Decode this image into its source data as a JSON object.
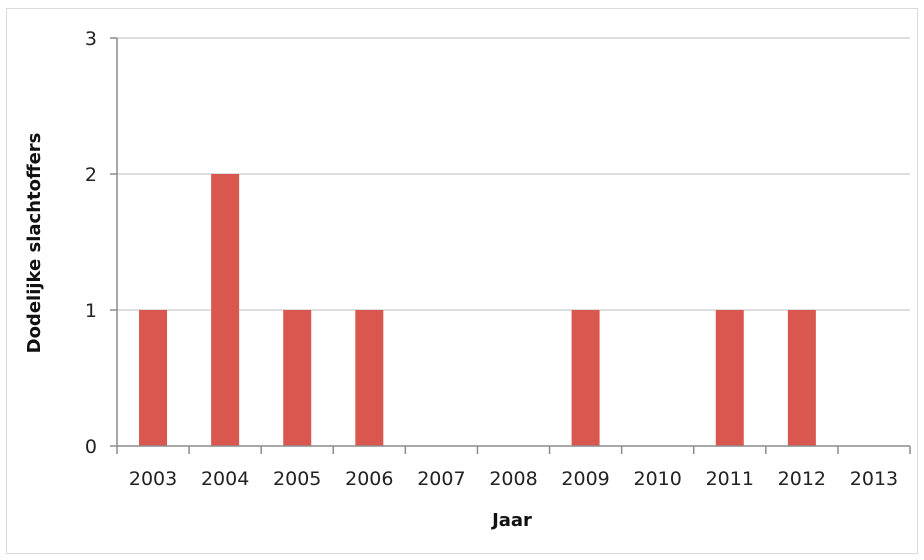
{
  "chart_data": {
    "type": "bar",
    "title": "",
    "xlabel": "Jaar",
    "ylabel": "Dodelijke slachtoffers",
    "categories": [
      "2003",
      "2004",
      "2005",
      "2006",
      "2007",
      "2008",
      "2009",
      "2010",
      "2011",
      "2012",
      "2013"
    ],
    "values": [
      1,
      2,
      1,
      1,
      0,
      0,
      1,
      0,
      1,
      1,
      0
    ],
    "ylim": [
      0,
      3
    ],
    "yticks": [
      0,
      1,
      2,
      3
    ],
    "grid": true,
    "legend": "none",
    "colors": {
      "bar": "#d9574f",
      "grid": "#d4d4d4",
      "axis": "#8c8c8c"
    }
  }
}
